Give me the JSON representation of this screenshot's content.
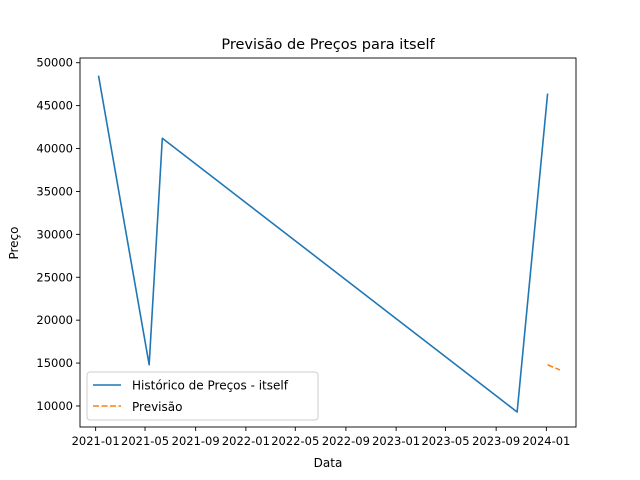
{
  "chart_data": {
    "type": "line",
    "title": "Previsão de Preços para itself",
    "xlabel": "Data",
    "ylabel": "Preço",
    "x_ticks": [
      "2021-01",
      "2021-05",
      "2021-09",
      "2022-01",
      "2022-05",
      "2022-09",
      "2023-01",
      "2023-05",
      "2023-09",
      "2024-01"
    ],
    "y_ticks": [
      10000,
      15000,
      20000,
      25000,
      30000,
      35000,
      40000,
      45000,
      50000
    ],
    "xlim": [
      "2020-11-24",
      "2024-03-13"
    ],
    "ylim": [
      7550,
      50550
    ],
    "grid": false,
    "legend_position": "lower-left",
    "series": [
      {
        "name": "Histórico de Preços - itself",
        "color": "#1f77b4",
        "style": "solid",
        "points": [
          {
            "x": "2021-01-08",
            "y": 48500
          },
          {
            "x": "2021-05-11",
            "y": 14800
          },
          {
            "x": "2021-06-12",
            "y": 41200
          },
          {
            "x": "2023-10-22",
            "y": 9300
          },
          {
            "x": "2024-01-04",
            "y": 46400
          }
        ]
      },
      {
        "name": "Previsão",
        "color": "#ff7f0e",
        "style": "dashed",
        "points": [
          {
            "x": "2024-01-04",
            "y": 14800
          },
          {
            "x": "2024-01-19",
            "y": 14500
          },
          {
            "x": "2024-02-03",
            "y": 14200
          }
        ]
      }
    ]
  }
}
